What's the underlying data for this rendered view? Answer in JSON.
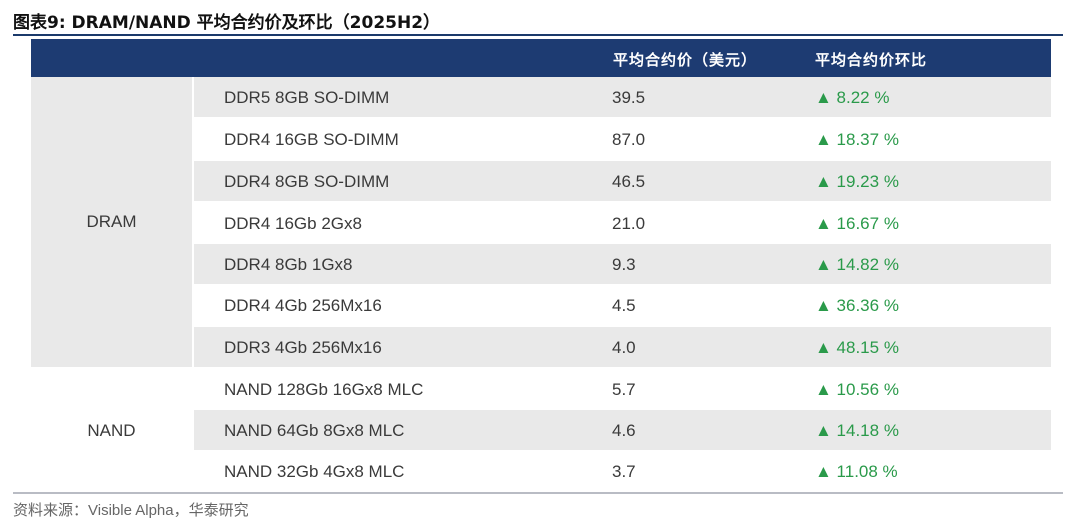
{
  "title": "图表9:  DRAM/NAND 平均合约价及环比（2025H2）",
  "header": {
    "col_product": "",
    "col_price": "平均合约价（美元）",
    "col_change": "平均合约价环比"
  },
  "groups": [
    {
      "label": "DRAM"
    },
    {
      "label": "NAND"
    }
  ],
  "rows": [
    {
      "product": "DDR5 8GB SO-DIMM",
      "price": "39.5",
      "change": "▲ 8.22 %"
    },
    {
      "product": "DDR4 16GB SO-DIMM",
      "price": "87.0",
      "change": "▲ 18.37 %"
    },
    {
      "product": "DDR4 8GB SO-DIMM",
      "price": "46.5",
      "change": "▲ 19.23 %"
    },
    {
      "product": "DDR4 16Gb 2Gx8",
      "price": "21.0",
      "change": "▲ 16.67 %"
    },
    {
      "product": "DDR4 8Gb 1Gx8",
      "price": "9.3",
      "change": "▲ 14.82 %"
    },
    {
      "product": "DDR4 4Gb 256Mx16",
      "price": "4.5",
      "change": "▲ 36.36 %"
    },
    {
      "product": "DDR3 4Gb 256Mx16",
      "price": "4.0",
      "change": "▲ 48.15 %"
    },
    {
      "product": "NAND 128Gb 16Gx8 MLC",
      "price": "5.7",
      "change": "▲ 10.56 %"
    },
    {
      "product": "NAND 64Gb 8Gx8 MLC",
      "price": "4.6",
      "change": "▲ 14.18 %"
    },
    {
      "product": "NAND 32Gb 4Gx8 MLC",
      "price": "3.7",
      "change": "▲ 11.08 %"
    }
  ],
  "source": "资料来源：Visible Alpha，华泰研究",
  "colors": {
    "header_bg": "#1d3b72",
    "row_shade": "#e9e9e9",
    "up_green": "#2a9a4a"
  }
}
